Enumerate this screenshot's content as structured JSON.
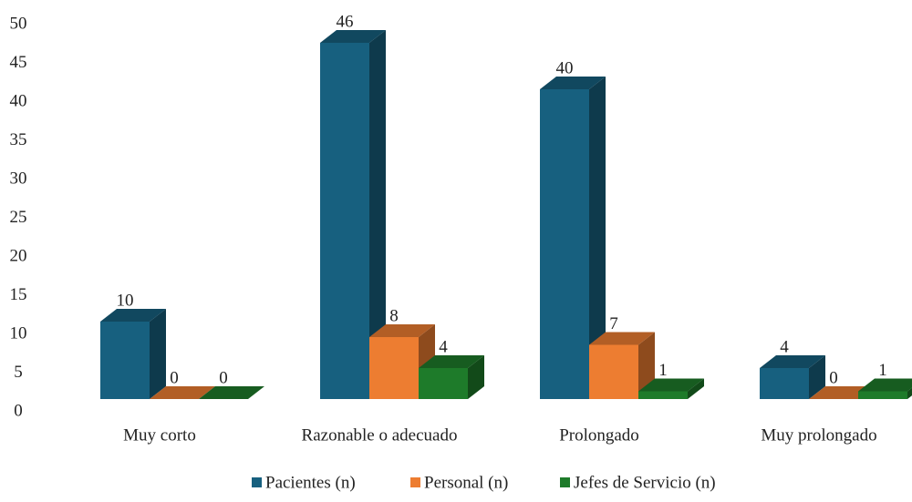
{
  "chart_data": {
    "type": "bar3d",
    "categories": [
      "Muy corto",
      "Razonable o adecuado",
      "Prolongado",
      "Muy prolongado"
    ],
    "series": [
      {
        "name": "Pacientes (n)",
        "color": "#17607f",
        "values": [
          10,
          46,
          40,
          4
        ]
      },
      {
        "name": "Personal (n)",
        "color": "#ed7d31",
        "values": [
          0,
          8,
          7,
          0
        ]
      },
      {
        "name": "Jefes de Servicio (n)",
        "color": "#1e7b2a",
        "values": [
          0,
          4,
          1,
          1
        ]
      }
    ],
    "ylim": [
      0,
      50
    ],
    "yticks": [
      0,
      5,
      10,
      15,
      20,
      25,
      30,
      35,
      40,
      45,
      50
    ],
    "grid": false,
    "legend": "bottom"
  }
}
